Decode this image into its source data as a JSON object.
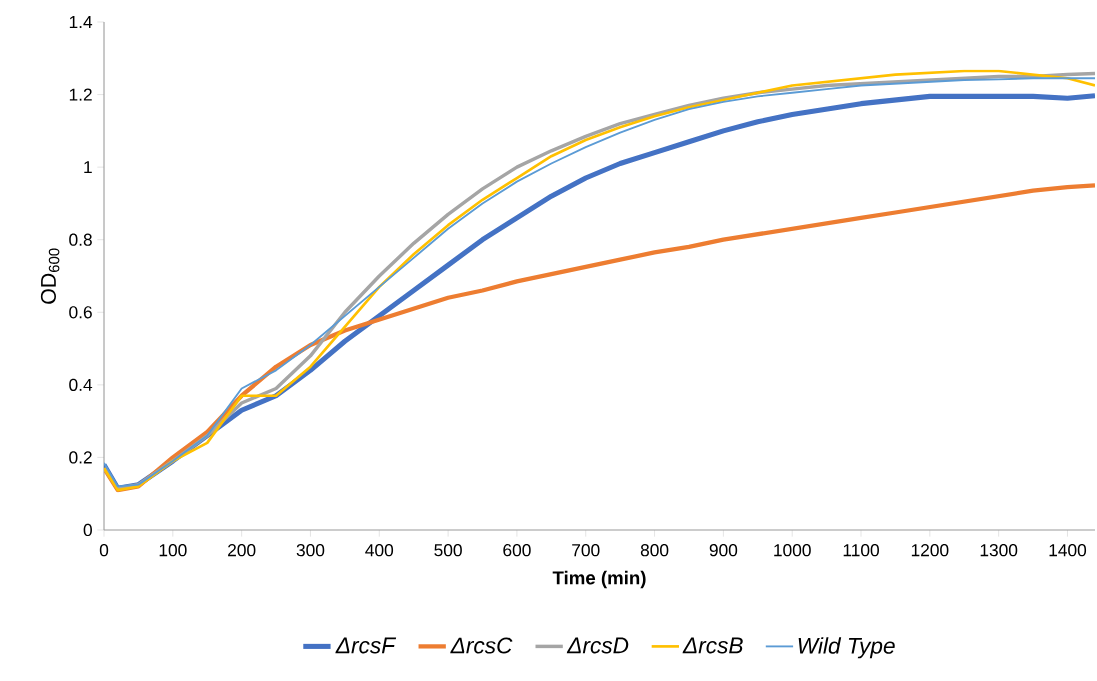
{
  "chart_data": {
    "type": "line",
    "xlabel": "Time (min)",
    "ylabel": "OD$_{600}$",
    "x": [
      0,
      20,
      50,
      100,
      150,
      200,
      250,
      300,
      350,
      400,
      450,
      500,
      550,
      600,
      650,
      700,
      750,
      800,
      850,
      900,
      950,
      1000,
      1050,
      1100,
      1150,
      1200,
      1250,
      1300,
      1350,
      1400,
      1440
    ],
    "series": [
      {
        "name": "ΔrcsF",
        "color": "#4472c4",
        "values": [
          0.18,
          0.115,
          0.125,
          0.19,
          0.26,
          0.33,
          0.37,
          0.44,
          0.52,
          0.59,
          0.66,
          0.73,
          0.8,
          0.86,
          0.92,
          0.97,
          1.01,
          1.04,
          1.07,
          1.1,
          1.125,
          1.145,
          1.16,
          1.175,
          1.185,
          1.195,
          1.195,
          1.195,
          1.195,
          1.19,
          1.197
        ]
      },
      {
        "name": "ΔrcsC",
        "color": "#ed7d31",
        "values": [
          0.17,
          0.11,
          0.12,
          0.2,
          0.27,
          0.37,
          0.45,
          0.51,
          0.55,
          0.58,
          0.61,
          0.64,
          0.66,
          0.685,
          0.705,
          0.725,
          0.745,
          0.765,
          0.78,
          0.8,
          0.815,
          0.83,
          0.845,
          0.86,
          0.875,
          0.89,
          0.905,
          0.92,
          0.935,
          0.945,
          0.95
        ]
      },
      {
        "name": "ΔrcsD",
        "color": "#a5a5a5",
        "values": [
          0.17,
          0.115,
          0.125,
          0.19,
          0.26,
          0.35,
          0.39,
          0.48,
          0.6,
          0.7,
          0.79,
          0.87,
          0.94,
          1.0,
          1.045,
          1.085,
          1.12,
          1.145,
          1.17,
          1.19,
          1.205,
          1.215,
          1.225,
          1.23,
          1.235,
          1.24,
          1.245,
          1.25,
          1.25,
          1.255,
          1.258
        ]
      },
      {
        "name": "ΔrcsB",
        "color": "#ffc000",
        "values": [
          0.17,
          0.11,
          0.12,
          0.19,
          0.24,
          0.37,
          0.37,
          0.45,
          0.56,
          0.67,
          0.76,
          0.84,
          0.91,
          0.97,
          1.03,
          1.075,
          1.11,
          1.14,
          1.165,
          1.185,
          1.205,
          1.225,
          1.235,
          1.245,
          1.255,
          1.26,
          1.265,
          1.265,
          1.255,
          1.245,
          1.225
        ]
      },
      {
        "name": "Wild Type",
        "color": "#5b9bd5",
        "values": [
          0.185,
          0.12,
          0.125,
          0.19,
          0.26,
          0.39,
          0.44,
          0.51,
          0.59,
          0.67,
          0.75,
          0.83,
          0.9,
          0.96,
          1.01,
          1.055,
          1.095,
          1.13,
          1.16,
          1.18,
          1.195,
          1.205,
          1.215,
          1.225,
          1.23,
          1.235,
          1.24,
          1.242,
          1.245,
          1.245,
          1.245
        ]
      }
    ],
    "xlim": [
      0,
      1440
    ],
    "xticks": [
      0,
      100,
      200,
      300,
      400,
      500,
      600,
      700,
      800,
      900,
      1000,
      1100,
      1200,
      1300,
      1400
    ],
    "ylim": [
      0,
      1.4
    ],
    "yticks": [
      {
        "value": 0,
        "label": "0"
      },
      {
        "value": 0.2,
        "label": "0.2"
      },
      {
        "value": 0.4,
        "label": "0.4"
      },
      {
        "value": 0.6,
        "label": "0.6"
      },
      {
        "value": 0.8,
        "label": "0.8"
      },
      {
        "value": 1,
        "label": "1"
      },
      {
        "value": 1.2,
        "label": "1.2"
      },
      {
        "value": 1.4,
        "label": "1.4"
      }
    ],
    "grid": false,
    "legend": "bottom",
    "marker": "none",
    "line_style": "solid"
  }
}
